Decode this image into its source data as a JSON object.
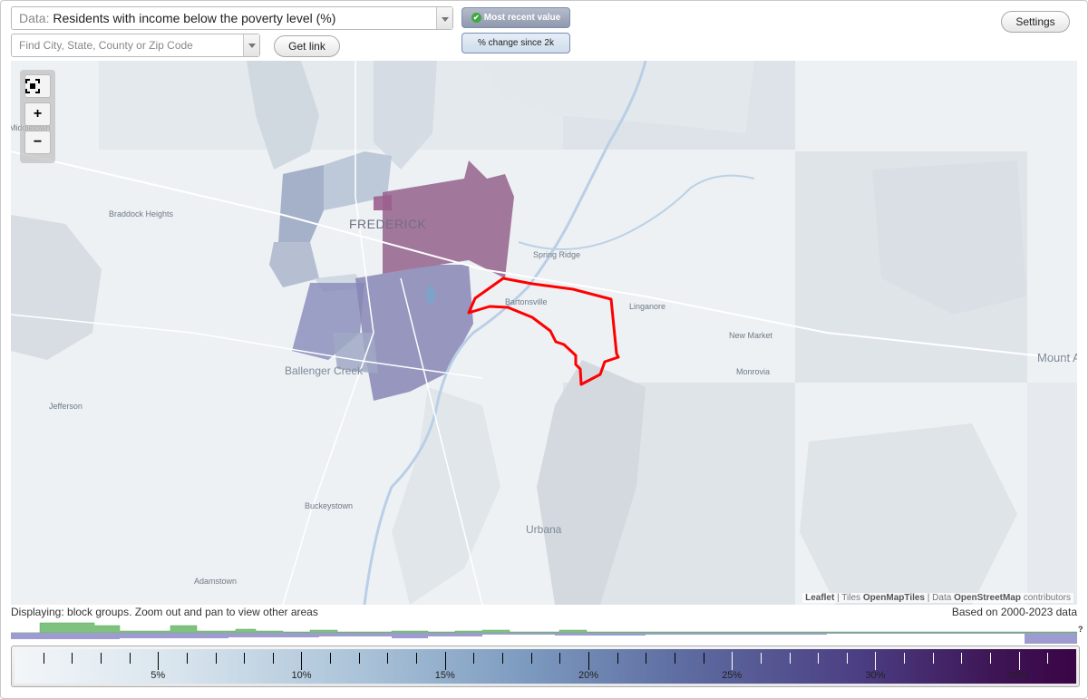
{
  "controls": {
    "data_prefix": "Data:",
    "data_value": "Residents with income below the poverty level (%)",
    "search_placeholder": "Find City, State, County or Zip Code",
    "get_link": "Get link",
    "settings": "Settings",
    "most_recent": "Most recent value",
    "change_since": "% change since 2k"
  },
  "map": {
    "zoom_in": "+",
    "zoom_out": "−",
    "labels": {
      "middletown": "Middletown",
      "braddock": "Braddock Heights",
      "frederick": "FREDERICK",
      "spring_ridge": "Spring Ridge",
      "bartonsville": "Bartonsville",
      "linganore": "Linganore",
      "new_market": "New Market",
      "monrovia": "Monrovia",
      "mount_airy": "Mount A",
      "ballenger": "Ballenger Creek",
      "jefferson": "Jefferson",
      "buckeystown": "Buckeystown",
      "urbana": "Urbana",
      "adamstown": "Adamstown"
    },
    "attribution": {
      "leaflet": "Leaflet",
      "sep1": " | Tiles ",
      "tiles": "OpenMapTiles",
      "sep2": " | Data ",
      "data": "OpenStreetMap",
      "tail": " contributors"
    }
  },
  "footer": {
    "displaying": "Displaying: block groups. Zoom out and pan to view other areas",
    "based_on": "Based on 2000-2023 data",
    "unknown_marker": "?"
  },
  "legend": {
    "min": 0,
    "max": 37,
    "ticks": [
      {
        "v": 1,
        "label": ""
      },
      {
        "v": 2,
        "label": ""
      },
      {
        "v": 3,
        "label": ""
      },
      {
        "v": 4,
        "label": ""
      },
      {
        "v": 5,
        "label": "5%"
      },
      {
        "v": 6,
        "label": ""
      },
      {
        "v": 7,
        "label": ""
      },
      {
        "v": 8,
        "label": ""
      },
      {
        "v": 9,
        "label": ""
      },
      {
        "v": 10,
        "label": "10%"
      },
      {
        "v": 11,
        "label": ""
      },
      {
        "v": 12,
        "label": ""
      },
      {
        "v": 13,
        "label": ""
      },
      {
        "v": 14,
        "label": ""
      },
      {
        "v": 15,
        "label": "15%"
      },
      {
        "v": 16,
        "label": ""
      },
      {
        "v": 17,
        "label": ""
      },
      {
        "v": 18,
        "label": ""
      },
      {
        "v": 19,
        "label": ""
      },
      {
        "v": 20,
        "label": "20%"
      },
      {
        "v": 21,
        "label": ""
      },
      {
        "v": 22,
        "label": ""
      },
      {
        "v": 23,
        "label": ""
      },
      {
        "v": 24,
        "label": ""
      },
      {
        "v": 25,
        "label": "25%"
      },
      {
        "v": 26,
        "label": ""
      },
      {
        "v": 27,
        "label": ""
      },
      {
        "v": 28,
        "label": ""
      },
      {
        "v": 29,
        "label": ""
      },
      {
        "v": 30,
        "label": "30%"
      },
      {
        "v": 31,
        "label": ""
      },
      {
        "v": 32,
        "label": ""
      },
      {
        "v": 33,
        "label": ""
      },
      {
        "v": 34,
        "label": ""
      },
      {
        "v": 35,
        "label": "35%"
      },
      {
        "v": 36,
        "label": ""
      }
    ]
  },
  "colors": {
    "highlight_outline": "#ff0000",
    "histogram_green": "#7fc27f",
    "histogram_purple": "#9d9bd0"
  }
}
